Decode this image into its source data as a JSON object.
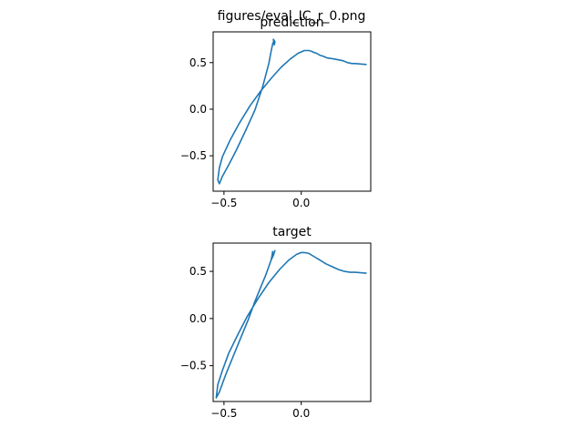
{
  "figure": {
    "suptitle": "figures/eval_IC_r_0.png",
    "line_color": "#1f77b4"
  },
  "chart_data": [
    {
      "type": "line",
      "title": "prediction",
      "xlim": [
        -0.57,
        0.45
      ],
      "ylim": [
        -0.88,
        0.83
      ],
      "xticks": [
        -0.5,
        0.0
      ],
      "xtick_labels": [
        "−0.5",
        "0.0"
      ],
      "yticks": [
        -0.5,
        0.0,
        0.5
      ],
      "ytick_labels": [
        "−0.5",
        "0.0",
        "0.5"
      ],
      "series": [
        {
          "x": [
            0.42,
            0.35,
            0.33,
            0.3,
            0.27,
            0.24,
            0.21,
            0.17,
            0.14,
            0.12,
            0.1,
            0.08,
            0.07,
            0.05,
            0.02,
            -0.02,
            -0.07,
            -0.13,
            -0.19,
            -0.26,
            -0.33,
            -0.4,
            -0.46,
            -0.51,
            -0.53,
            -0.54,
            -0.53,
            -0.51,
            -0.47,
            -0.42,
            -0.36,
            -0.3,
            -0.25,
            -0.21,
            -0.195,
            -0.185,
            -0.175,
            -0.17,
            -0.175,
            -0.18
          ],
          "y": [
            0.48,
            0.49,
            0.49,
            0.5,
            0.52,
            0.53,
            0.54,
            0.55,
            0.57,
            0.58,
            0.6,
            0.61,
            0.62,
            0.63,
            0.63,
            0.6,
            0.54,
            0.45,
            0.34,
            0.2,
            0.04,
            -0.15,
            -0.33,
            -0.51,
            -0.63,
            -0.76,
            -0.8,
            -0.72,
            -0.6,
            -0.44,
            -0.23,
            -0.01,
            0.24,
            0.49,
            0.62,
            0.7,
            0.74,
            0.72,
            0.69,
            0.75
          ]
        }
      ]
    },
    {
      "type": "line",
      "title": "target",
      "xlim": [
        -0.57,
        0.45
      ],
      "ylim": [
        -0.88,
        0.8
      ],
      "xticks": [
        -0.5,
        0.0
      ],
      "xtick_labels": [
        "−0.5",
        "0.0"
      ],
      "yticks": [
        -0.5,
        0.0,
        0.5
      ],
      "ytick_labels": [
        "−0.5",
        "0.0",
        "0.5"
      ],
      "series": [
        {
          "x": [
            0.42,
            0.35,
            0.32,
            0.28,
            0.24,
            0.2,
            0.16,
            0.12,
            0.08,
            0.05,
            0.02,
            0.0,
            -0.03,
            -0.08,
            -0.14,
            -0.21,
            -0.28,
            -0.35,
            -0.41,
            -0.47,
            -0.51,
            -0.54,
            -0.55,
            -0.53,
            -0.49,
            -0.44,
            -0.39,
            -0.34,
            -0.3,
            -0.26,
            -0.23,
            -0.21,
            -0.195,
            -0.18,
            -0.17,
            -0.18,
            -0.195,
            -0.19,
            -0.185
          ],
          "y": [
            0.48,
            0.49,
            0.49,
            0.5,
            0.52,
            0.55,
            0.58,
            0.62,
            0.66,
            0.69,
            0.7,
            0.7,
            0.68,
            0.62,
            0.52,
            0.38,
            0.21,
            0.02,
            -0.17,
            -0.37,
            -0.55,
            -0.7,
            -0.84,
            -0.78,
            -0.6,
            -0.4,
            -0.2,
            0.0,
            0.18,
            0.34,
            0.46,
            0.55,
            0.62,
            0.67,
            0.72,
            0.68,
            0.62,
            0.66,
            0.71
          ]
        }
      ]
    }
  ]
}
